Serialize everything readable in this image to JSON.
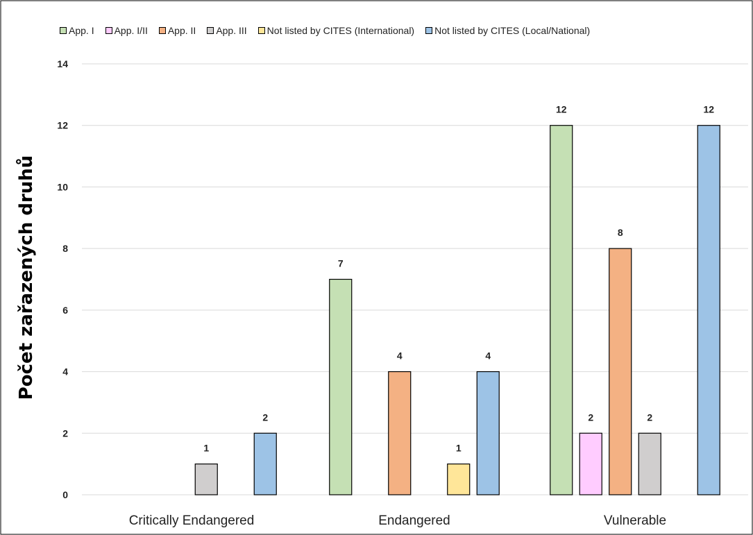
{
  "chart_data": {
    "type": "bar",
    "title": "",
    "xlabel": "",
    "ylabel": "Počet zařazených druhů",
    "ylim": [
      0,
      14
    ],
    "yticks": [
      0,
      2,
      4,
      6,
      8,
      10,
      12,
      14
    ],
    "grid": true,
    "legend_position": "top",
    "categories": [
      "Critically Endangered",
      "Endangered",
      "Vulnerable"
    ],
    "series": [
      {
        "name": "App. I",
        "color": "#c5e0b4",
        "values": [
          0,
          7,
          12
        ]
      },
      {
        "name": "App. I/II",
        "color": "#ffccff",
        "values": [
          0,
          0,
          2
        ]
      },
      {
        "name": "App. II",
        "color": "#f4b183",
        "values": [
          0,
          4,
          8
        ]
      },
      {
        "name": "App. III",
        "color": "#d0cece",
        "values": [
          1,
          0,
          2
        ]
      },
      {
        "name": "Not listed by CITES (International)",
        "color": "#ffe699",
        "values": [
          0,
          1,
          0
        ]
      },
      {
        "name": "Not listed by CITES (Local/National)",
        "color": "#9dc3e6",
        "values": [
          2,
          4,
          12
        ]
      }
    ]
  }
}
